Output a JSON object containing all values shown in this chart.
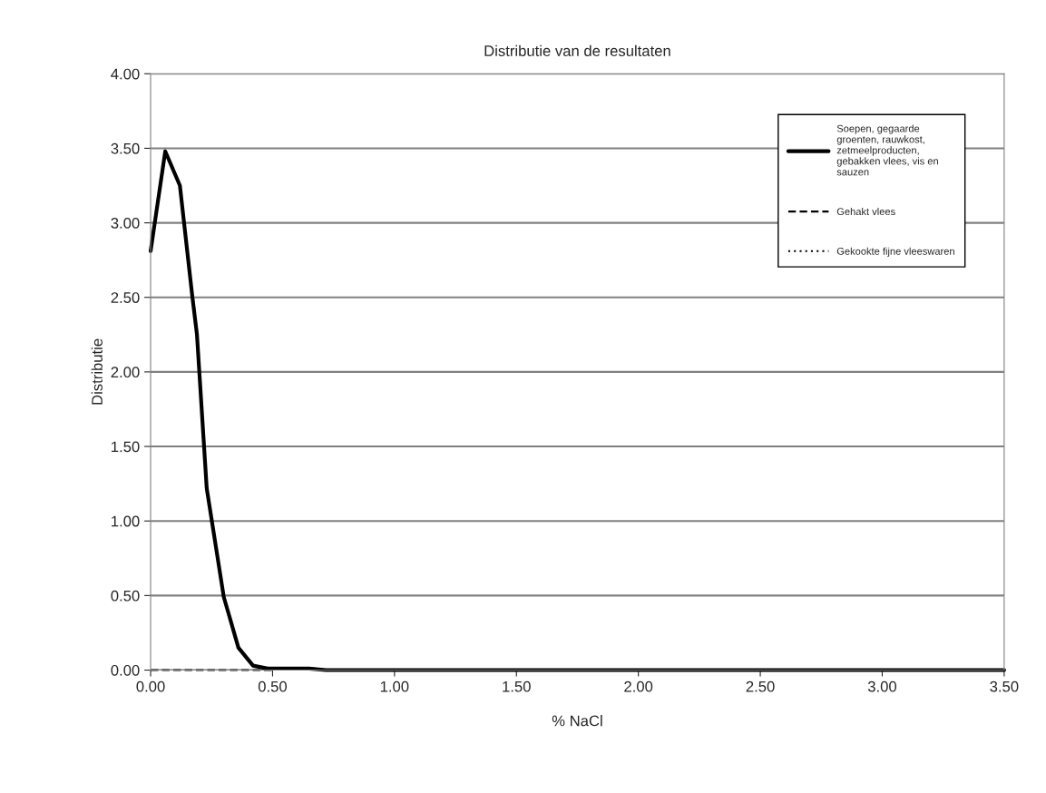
{
  "chart_data": {
    "type": "line",
    "title": "Distributie van de resultaten",
    "xlabel": "% NaCl",
    "ylabel": "Distributie",
    "xlim": [
      0,
      3.5
    ],
    "ylim": [
      0,
      4
    ],
    "xticks": [
      {
        "value": 0,
        "label": "0.00"
      },
      {
        "value": 0.5,
        "label": "0.50"
      },
      {
        "value": 1,
        "label": "1.00"
      },
      {
        "value": 1.5,
        "label": "1.50"
      },
      {
        "value": 2,
        "label": "2.00"
      },
      {
        "value": 2.5,
        "label": "2.50"
      },
      {
        "value": 3,
        "label": "3.00"
      },
      {
        "value": 3.5,
        "label": "3.50"
      }
    ],
    "yticks": [
      {
        "value": 0,
        "label": "0.00"
      },
      {
        "value": 0.5,
        "label": "0.50"
      },
      {
        "value": 1,
        "label": "1.00"
      },
      {
        "value": 1.5,
        "label": "1.50"
      },
      {
        "value": 2,
        "label": "2.00"
      },
      {
        "value": 2.5,
        "label": "2.50"
      },
      {
        "value": 3,
        "label": "3.00"
      },
      {
        "value": 3.5,
        "label": "3.50"
      },
      {
        "value": 4,
        "label": "4.00"
      }
    ],
    "grid": "y",
    "legend": "top right",
    "series": [
      {
        "name": "Soepen, gegaarde\ngroenten, rauwkost,\nzetmeelproducten,\ngebakken vlees, vis en\nsauzen",
        "color": "#000000",
        "line_style": "solid",
        "x": [
          0,
          0.06,
          0.12,
          0.17,
          0.19,
          0.23,
          0.3,
          0.36,
          0.42,
          0.48,
          0.65,
          0.72,
          3.5
        ],
        "values": [
          2.81,
          3.48,
          3.25,
          2.52,
          2.25,
          1.22,
          0.49,
          0.15,
          0.03,
          0.01,
          0.01,
          0,
          0
        ]
      },
      {
        "name": "Gehakt vlees",
        "color": "#000000",
        "line_style": "dashed",
        "x": [
          0,
          0.5
        ],
        "values": [
          0,
          0
        ]
      },
      {
        "name": "Gekookte fijne vleeswaren",
        "color": "#000000",
        "line_style": "dotted"
      }
    ]
  }
}
